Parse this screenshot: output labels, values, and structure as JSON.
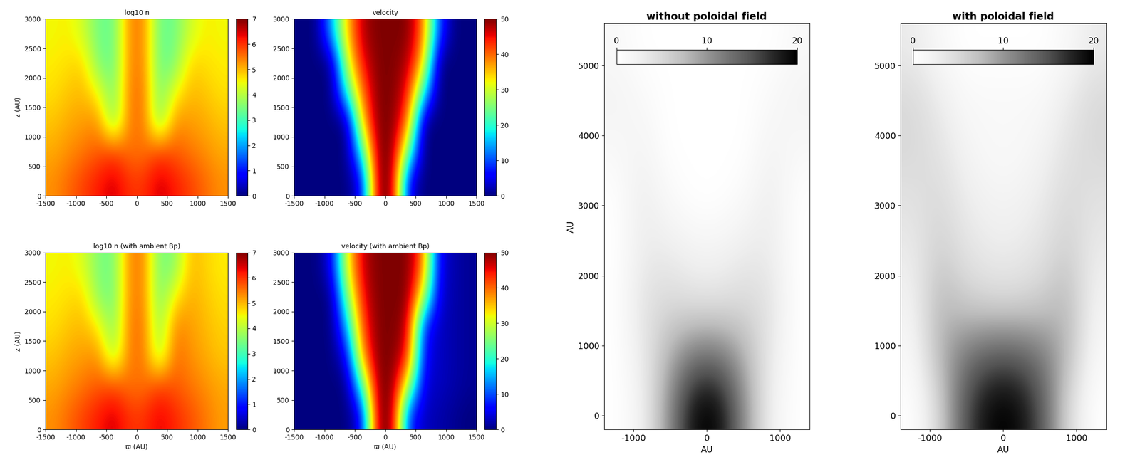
{
  "chart_data": [
    {
      "type": "heatmap",
      "title": "log10 n",
      "ylabel": "z (AU)",
      "color": "jet",
      "xlim": [
        -1500,
        1500
      ],
      "ylim": [
        0,
        3000
      ],
      "xticks": [
        -1500,
        -1000,
        -500,
        0,
        500,
        1000,
        1500
      ],
      "yticks": [
        0,
        500,
        1000,
        1500,
        2000,
        2500,
        3000
      ],
      "color_range": [
        0,
        7
      ],
      "color_ticks": [
        0,
        1,
        2,
        3,
        4,
        5,
        6,
        7
      ],
      "cells": [
        [
          5.3,
          5.6,
          5.9,
          6.2,
          6.5,
          6.0,
          6.0,
          6.5,
          6.2,
          5.9,
          5.6,
          5.3
        ],
        [
          5.1,
          5.3,
          5.5,
          5.7,
          5.9,
          5.5,
          5.5,
          5.9,
          5.7,
          5.5,
          5.3,
          5.1
        ],
        [
          4.9,
          5.1,
          5.2,
          5.3,
          3.5,
          5.5,
          5.5,
          3.5,
          5.3,
          5.2,
          5.1,
          4.9
        ],
        [
          4.7,
          4.9,
          5.0,
          4.5,
          3.4,
          5.5,
          5.5,
          3.4,
          4.5,
          5.0,
          4.9,
          4.7
        ],
        [
          4.6,
          4.7,
          4.8,
          3.5,
          3.3,
          5.4,
          5.4,
          3.3,
          3.5,
          4.8,
          4.7,
          4.6
        ],
        [
          4.5,
          4.6,
          4.2,
          3.4,
          3.3,
          5.4,
          5.4,
          3.3,
          3.4,
          4.2,
          4.6,
          4.5
        ]
      ]
    },
    {
      "type": "heatmap",
      "title": "velocity",
      "color": "jet",
      "xlim": [
        -1500,
        1500
      ],
      "ylim": [
        0,
        3000
      ],
      "xticks": [
        -1500,
        -1000,
        -500,
        0,
        500,
        1000,
        1500
      ],
      "yticks": [
        0,
        500,
        1000,
        1500,
        2000,
        2500,
        3000
      ],
      "color_range": [
        0,
        50
      ],
      "color_ticks": [
        0,
        10,
        20,
        30,
        40,
        50
      ],
      "cells": [
        [
          0,
          0,
          0,
          0,
          5,
          50,
          50,
          5,
          0,
          0,
          0,
          0
        ],
        [
          0,
          0,
          0,
          0,
          20,
          50,
          50,
          25,
          0,
          0,
          0,
          0
        ],
        [
          0,
          0,
          0,
          0,
          35,
          50,
          50,
          40,
          0,
          0,
          0,
          0
        ],
        [
          0,
          0,
          0,
          20,
          40,
          50,
          50,
          45,
          20,
          0,
          0,
          0
        ],
        [
          0,
          0,
          0,
          30,
          45,
          50,
          50,
          48,
          35,
          0,
          0,
          0
        ],
        [
          0,
          0,
          15,
          35,
          48,
          50,
          50,
          50,
          40,
          10,
          0,
          0
        ]
      ]
    },
    {
      "type": "heatmap",
      "title": "log10 n (with ambient Bp)",
      "xlabel": "ϖ (AU)",
      "ylabel": "z (AU)",
      "color": "jet",
      "xlim": [
        -1500,
        1500
      ],
      "ylim": [
        0,
        3000
      ],
      "xticks": [
        -1500,
        -1000,
        -500,
        0,
        500,
        1000,
        1500
      ],
      "yticks": [
        0,
        500,
        1000,
        1500,
        2000,
        2500,
        3000
      ],
      "color_range": [
        0,
        7
      ],
      "color_ticks": [
        0,
        1,
        2,
        3,
        4,
        5,
        6,
        7
      ],
      "cells": [
        [
          5.3,
          5.6,
          5.9,
          6.2,
          6.5,
          6.0,
          6.0,
          6.4,
          6.1,
          5.8,
          5.5,
          5.2
        ],
        [
          5.1,
          5.3,
          5.5,
          5.7,
          5.8,
          5.5,
          5.5,
          5.9,
          5.7,
          5.5,
          5.3,
          5.1
        ],
        [
          4.9,
          5.1,
          5.2,
          5.3,
          3.8,
          5.5,
          5.5,
          3.8,
          5.6,
          5.3,
          5.1,
          4.9
        ],
        [
          4.7,
          4.9,
          5.0,
          4.6,
          3.5,
          5.5,
          5.5,
          3.6,
          5.4,
          5.2,
          5.0,
          4.8
        ],
        [
          4.6,
          4.7,
          4.8,
          3.6,
          3.4,
          5.4,
          5.4,
          3.4,
          4.6,
          5.1,
          4.9,
          4.7
        ],
        [
          4.5,
          4.6,
          4.3,
          3.5,
          3.4,
          5.4,
          5.4,
          3.4,
          3.6,
          5.0,
          4.8,
          4.6
        ]
      ]
    },
    {
      "type": "heatmap",
      "title": "velocity (with ambient Bp)",
      "xlabel": "ϖ (AU)",
      "color": "jet",
      "xlim": [
        -1500,
        1500
      ],
      "ylim": [
        0,
        3000
      ],
      "xticks": [
        -1500,
        -1000,
        -500,
        0,
        500,
        1000,
        1500
      ],
      "yticks": [
        0,
        500,
        1000,
        1500,
        2000,
        2500,
        3000
      ],
      "color_range": [
        0,
        50
      ],
      "color_ticks": [
        0,
        10,
        20,
        30,
        40,
        50
      ],
      "cells": [
        [
          0,
          0,
          0,
          0,
          5,
          50,
          50,
          8,
          3,
          2,
          1,
          0
        ],
        [
          0,
          0,
          0,
          0,
          22,
          50,
          50,
          30,
          4,
          3,
          2,
          1
        ],
        [
          0,
          0,
          0,
          5,
          38,
          50,
          50,
          45,
          6,
          3,
          2,
          1
        ],
        [
          0,
          0,
          0,
          15,
          42,
          50,
          50,
          48,
          8,
          3,
          2,
          1
        ],
        [
          0,
          0,
          0,
          25,
          45,
          50,
          50,
          50,
          30,
          4,
          2,
          1
        ],
        [
          0,
          0,
          5,
          32,
          47,
          50,
          50,
          50,
          40,
          5,
          2,
          1
        ]
      ]
    },
    {
      "type": "heatmap",
      "title": "without poloidal field",
      "xlabel": "AU",
      "ylabel": "AU",
      "color": "Greys",
      "xlim": [
        -1400,
        1400
      ],
      "ylim": [
        -200,
        5600
      ],
      "xticks": [
        -1000,
        0,
        1000
      ],
      "yticks": [
        0,
        1000,
        2000,
        3000,
        4000,
        5000
      ],
      "color_range": [
        0,
        20
      ],
      "color_ticks": [
        0,
        10,
        20
      ],
      "cells": [
        [
          0,
          2,
          10,
          20,
          20,
          10,
          2,
          0
        ],
        [
          0,
          3,
          8,
          12,
          12,
          8,
          3,
          0
        ],
        [
          0,
          4,
          5,
          4,
          4,
          5,
          4,
          0
        ],
        [
          0,
          3,
          3,
          2,
          2,
          3,
          3,
          0
        ],
        [
          0,
          3,
          1,
          0,
          0,
          1,
          3,
          0
        ],
        [
          1,
          2,
          0,
          0,
          0,
          0,
          2,
          1
        ],
        [
          2,
          1,
          0,
          0,
          0,
          0,
          1,
          2
        ],
        [
          1,
          0,
          0,
          0,
          0,
          0,
          0,
          1
        ]
      ]
    },
    {
      "type": "heatmap",
      "title": "with poloidal field",
      "xlabel": "AU",
      "color": "Greys",
      "xlim": [
        -1400,
        1400
      ],
      "ylim": [
        -200,
        5600
      ],
      "xticks": [
        -1000,
        0,
        1000
      ],
      "yticks": [
        0,
        1000,
        2000,
        3000,
        4000,
        5000
      ],
      "color_range": [
        0,
        20
      ],
      "color_ticks": [
        0,
        10,
        20
      ],
      "cells": [
        [
          0,
          5,
          15,
          20,
          20,
          15,
          5,
          0
        ],
        [
          1,
          8,
          12,
          14,
          14,
          12,
          8,
          1
        ],
        [
          2,
          8,
          6,
          5,
          5,
          6,
          8,
          2
        ],
        [
          3,
          6,
          4,
          3,
          3,
          4,
          6,
          3
        ],
        [
          4,
          5,
          3,
          2,
          2,
          3,
          5,
          4
        ],
        [
          5,
          4,
          2,
          1,
          1,
          2,
          4,
          5
        ],
        [
          5,
          3,
          1,
          1,
          1,
          1,
          3,
          5
        ],
        [
          3,
          1,
          0,
          0,
          0,
          0,
          1,
          3
        ]
      ]
    }
  ]
}
